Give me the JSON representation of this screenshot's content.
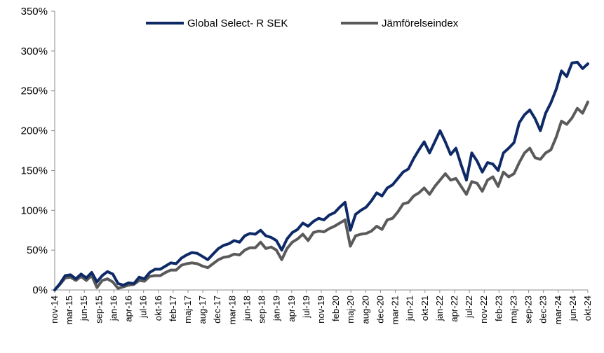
{
  "chart_data": {
    "type": "line",
    "title": "",
    "xlabel": "",
    "ylabel": "",
    "ylim": [
      0,
      350
    ],
    "y_ticks": [
      "0%",
      "50%",
      "100%",
      "150%",
      "200%",
      "250%",
      "300%",
      "350%"
    ],
    "x_ticks": [
      "nov-14",
      "mar-15",
      "jun-15",
      "sep-15",
      "jan-16",
      "apr-16",
      "jul-16",
      "okt-16",
      "feb-17",
      "maj-17",
      "aug-17",
      "dec-17",
      "mar-18",
      "jun-18",
      "sep-18",
      "jan-19",
      "apr-19",
      "jul-19",
      "nov-19",
      "feb-20",
      "maj-20",
      "aug-20",
      "dec-20",
      "mar-21",
      "jun-21",
      "okt-21",
      "jan-22",
      "apr-22",
      "jul-22",
      "nov-22",
      "feb-23",
      "maj-23",
      "sep-23",
      "dec-23",
      "mar-24",
      "jun-24",
      "okt-24"
    ],
    "grid": false,
    "legend_position": "top",
    "series": [
      {
        "name": "Global Select- R SEK",
        "color": "#0e2a66",
        "points": [
          [
            0,
            0
          ],
          [
            1,
            8
          ],
          [
            2,
            18
          ],
          [
            3,
            19
          ],
          [
            4,
            14
          ],
          [
            5,
            20
          ],
          [
            6,
            15
          ],
          [
            7,
            22
          ],
          [
            8,
            10
          ],
          [
            9,
            18
          ],
          [
            10,
            23
          ],
          [
            11,
            20
          ],
          [
            12,
            8
          ],
          [
            13,
            6
          ],
          [
            14,
            9
          ],
          [
            15,
            8
          ],
          [
            16,
            16
          ],
          [
            17,
            14
          ],
          [
            18,
            22
          ],
          [
            19,
            26
          ],
          [
            20,
            26
          ],
          [
            21,
            30
          ],
          [
            22,
            34
          ],
          [
            23,
            33
          ],
          [
            24,
            40
          ],
          [
            25,
            44
          ],
          [
            26,
            47
          ],
          [
            27,
            46
          ],
          [
            28,
            42
          ],
          [
            29,
            38
          ],
          [
            30,
            45
          ],
          [
            31,
            52
          ],
          [
            32,
            56
          ],
          [
            33,
            58
          ],
          [
            34,
            62
          ],
          [
            35,
            60
          ],
          [
            36,
            68
          ],
          [
            37,
            71
          ],
          [
            38,
            70
          ],
          [
            39,
            75
          ],
          [
            40,
            68
          ],
          [
            41,
            66
          ],
          [
            42,
            62
          ],
          [
            43,
            50
          ],
          [
            44,
            64
          ],
          [
            45,
            72
          ],
          [
            46,
            76
          ],
          [
            47,
            84
          ],
          [
            48,
            80
          ],
          [
            49,
            86
          ],
          [
            50,
            90
          ],
          [
            51,
            88
          ],
          [
            52,
            94
          ],
          [
            53,
            97
          ],
          [
            54,
            104
          ],
          [
            55,
            110
          ],
          [
            56,
            75
          ],
          [
            57,
            95
          ],
          [
            58,
            100
          ],
          [
            59,
            104
          ],
          [
            60,
            112
          ],
          [
            61,
            122
          ],
          [
            62,
            118
          ],
          [
            63,
            128
          ],
          [
            64,
            132
          ],
          [
            65,
            140
          ],
          [
            66,
            148
          ],
          [
            67,
            152
          ],
          [
            68,
            165
          ],
          [
            69,
            176
          ],
          [
            70,
            186
          ],
          [
            71,
            172
          ],
          [
            72,
            186
          ],
          [
            73,
            200
          ],
          [
            74,
            186
          ],
          [
            75,
            170
          ],
          [
            76,
            178
          ],
          [
            77,
            157
          ],
          [
            78,
            138
          ],
          [
            79,
            172
          ],
          [
            80,
            162
          ],
          [
            81,
            148
          ],
          [
            82,
            160
          ],
          [
            83,
            158
          ],
          [
            84,
            150
          ],
          [
            85,
            172
          ],
          [
            86,
            178
          ],
          [
            87,
            185
          ],
          [
            88,
            210
          ],
          [
            89,
            220
          ],
          [
            90,
            226
          ],
          [
            91,
            215
          ],
          [
            92,
            200
          ],
          [
            93,
            222
          ],
          [
            94,
            235
          ],
          [
            95,
            252
          ],
          [
            96,
            275
          ],
          [
            97,
            268
          ],
          [
            98,
            285
          ],
          [
            99,
            286
          ],
          [
            100,
            278
          ],
          [
            101,
            284
          ]
        ]
      },
      {
        "name": "Jämförelseindex",
        "color": "#5a5a5a",
        "points": [
          [
            0,
            0
          ],
          [
            1,
            7
          ],
          [
            2,
            15
          ],
          [
            3,
            16
          ],
          [
            4,
            12
          ],
          [
            5,
            17
          ],
          [
            6,
            12
          ],
          [
            7,
            18
          ],
          [
            8,
            3
          ],
          [
            9,
            12
          ],
          [
            10,
            14
          ],
          [
            11,
            10
          ],
          [
            12,
            2
          ],
          [
            13,
            4
          ],
          [
            14,
            6
          ],
          [
            15,
            7
          ],
          [
            16,
            12
          ],
          [
            17,
            11
          ],
          [
            18,
            17
          ],
          [
            19,
            18
          ],
          [
            20,
            18
          ],
          [
            21,
            22
          ],
          [
            22,
            25
          ],
          [
            23,
            25
          ],
          [
            24,
            31
          ],
          [
            25,
            33
          ],
          [
            26,
            34
          ],
          [
            27,
            33
          ],
          [
            28,
            30
          ],
          [
            29,
            28
          ],
          [
            30,
            33
          ],
          [
            31,
            38
          ],
          [
            32,
            41
          ],
          [
            33,
            42
          ],
          [
            34,
            45
          ],
          [
            35,
            44
          ],
          [
            36,
            50
          ],
          [
            37,
            53
          ],
          [
            38,
            53
          ],
          [
            39,
            60
          ],
          [
            40,
            52
          ],
          [
            41,
            54
          ],
          [
            42,
            50
          ],
          [
            43,
            38
          ],
          [
            44,
            52
          ],
          [
            45,
            60
          ],
          [
            46,
            64
          ],
          [
            47,
            70
          ],
          [
            48,
            62
          ],
          [
            49,
            72
          ],
          [
            50,
            74
          ],
          [
            51,
            73
          ],
          [
            52,
            77
          ],
          [
            53,
            80
          ],
          [
            54,
            84
          ],
          [
            55,
            88
          ],
          [
            56,
            55
          ],
          [
            57,
            68
          ],
          [
            58,
            70
          ],
          [
            59,
            71
          ],
          [
            60,
            74
          ],
          [
            61,
            80
          ],
          [
            62,
            76
          ],
          [
            63,
            88
          ],
          [
            64,
            90
          ],
          [
            65,
            98
          ],
          [
            66,
            108
          ],
          [
            67,
            110
          ],
          [
            68,
            118
          ],
          [
            69,
            122
          ],
          [
            70,
            128
          ],
          [
            71,
            120
          ],
          [
            72,
            130
          ],
          [
            73,
            138
          ],
          [
            74,
            146
          ],
          [
            75,
            138
          ],
          [
            76,
            140
          ],
          [
            77,
            130
          ],
          [
            78,
            120
          ],
          [
            79,
            136
          ],
          [
            80,
            134
          ],
          [
            81,
            124
          ],
          [
            82,
            138
          ],
          [
            83,
            142
          ],
          [
            84,
            130
          ],
          [
            85,
            148
          ],
          [
            86,
            142
          ],
          [
            87,
            146
          ],
          [
            88,
            160
          ],
          [
            89,
            172
          ],
          [
            90,
            178
          ],
          [
            91,
            166
          ],
          [
            92,
            164
          ],
          [
            93,
            172
          ],
          [
            94,
            176
          ],
          [
            95,
            192
          ],
          [
            96,
            212
          ],
          [
            97,
            208
          ],
          [
            98,
            216
          ],
          [
            99,
            228
          ],
          [
            100,
            222
          ],
          [
            101,
            236
          ]
        ]
      }
    ]
  }
}
